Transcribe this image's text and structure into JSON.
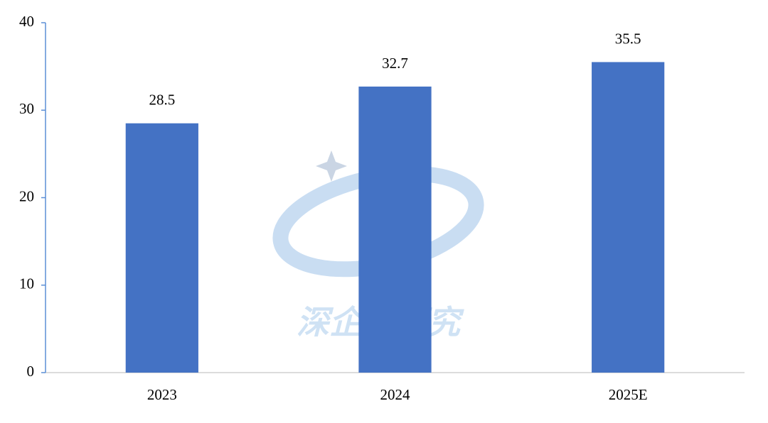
{
  "chart_data": {
    "type": "bar",
    "watermark": "深企投研究",
    "categories": [
      "2023",
      "2024",
      "2025E"
    ],
    "values": [
      28.5,
      32.7,
      35.5
    ],
    "color": "#4472c4",
    "ylim": [
      0,
      40
    ],
    "yticks": [
      0,
      10,
      20,
      30,
      40
    ],
    "grid": false
  }
}
